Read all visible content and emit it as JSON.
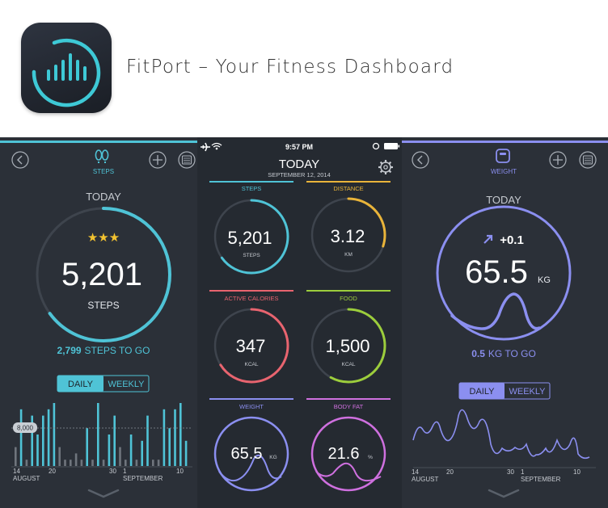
{
  "app": {
    "title": "FitPort – Your Fitness Dashboard",
    "icon": "fitport-logo-icon"
  },
  "colors": {
    "steps": "#4fc3d6",
    "distance": "#e9b43a",
    "calories": "#e8646f",
    "food": "#9ccd3c",
    "weight": "#8b8ff0",
    "body_fat": "#cf70df",
    "bg": "#2b3038"
  },
  "status_bar": {
    "time": "9:57 PM"
  },
  "steps_screen": {
    "tab_label": "STEPS",
    "heading": "TODAY",
    "stars": "★★★",
    "value": "5,201",
    "unit": "STEPS",
    "progress": 0.65,
    "to_go_value": "2,799",
    "to_go_label": "STEPS TO GO",
    "toggle": {
      "daily": "DAILY",
      "weekly": "WEEKLY",
      "selected": "DAILY"
    },
    "goal_badge": "8,000",
    "x_ticks": [
      "14",
      "20",
      "30",
      "1",
      "10"
    ],
    "x_months": [
      "AUGUST",
      "SEPTEMBER"
    ],
    "bars": [
      3,
      9,
      1,
      8,
      5,
      8,
      9,
      10,
      3,
      1,
      1,
      2,
      1,
      6,
      1,
      10,
      1,
      5,
      8,
      3,
      1,
      5,
      1,
      4,
      8,
      1,
      1,
      9,
      6,
      9,
      10,
      4
    ]
  },
  "dashboard": {
    "title": "TODAY",
    "date": "SEPTEMBER 12, 2014",
    "tiles": {
      "steps": {
        "label": "STEPS",
        "value": "5,201",
        "unit": "STEPS",
        "progress": 0.65
      },
      "distance": {
        "label": "DISTANCE",
        "value": "3.12",
        "unit": "KM",
        "progress": 0.3
      },
      "calories": {
        "label": "ACTIVE CALORIES",
        "value": "347",
        "unit": "KCAL",
        "progress": 0.66
      },
      "food": {
        "label": "FOOD",
        "value": "1,500",
        "unit": "KCAL",
        "progress": 0.58
      },
      "weight": {
        "label": "WEIGHT",
        "value": "65.5",
        "unit": "KG"
      },
      "body_fat": {
        "label": "BODY FAT",
        "value": "21.6",
        "unit": "%"
      }
    }
  },
  "weight_screen": {
    "tab_label": "WEIGHT",
    "heading": "TODAY",
    "change": "+0.1",
    "value": "65.5",
    "unit": "KG",
    "to_go_value": "0.5",
    "to_go_label": "KG TO GO",
    "toggle": {
      "daily": "DAILY",
      "weekly": "WEEKLY",
      "selected": "DAILY"
    },
    "x_ticks": [
      "14",
      "20",
      "30",
      "1",
      "10"
    ],
    "x_months": [
      "AUGUST",
      "SEPTEMBER"
    ]
  }
}
